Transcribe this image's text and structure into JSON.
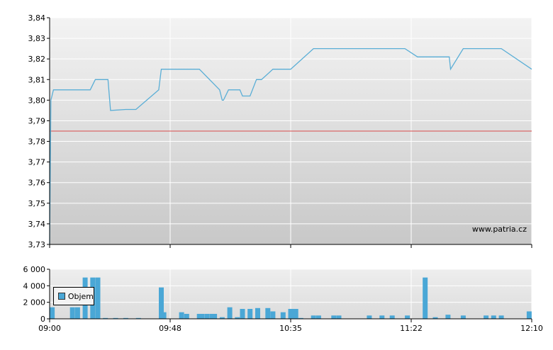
{
  "chart_data": [
    {
      "type": "line",
      "name": "price",
      "y_ticks": [
        "3,84",
        "3,83",
        "3,82",
        "3,81",
        "3,80",
        "3,79",
        "3,78",
        "3,77",
        "3,76",
        "3,75",
        "3,74",
        "3,73"
      ],
      "ylim": [
        3.73,
        3.84
      ],
      "reference_line": 3.785,
      "watermark": "www.patria.cz",
      "x_ticks": [
        "09:00",
        "09:48",
        "10:35",
        "11:22",
        "12:10"
      ],
      "xlim_minutes": [
        0,
        190
      ],
      "series": [
        {
          "points": [
            [
              0,
              3.73
            ],
            [
              0.5,
              3.8
            ],
            [
              1.5,
              3.805
            ],
            [
              16,
              3.805
            ],
            [
              18,
              3.81
            ],
            [
              23,
              3.81
            ],
            [
              24,
              3.795
            ],
            [
              30,
              3.7955
            ],
            [
              34,
              3.7955
            ],
            [
              43,
              3.805
            ],
            [
              44,
              3.815
            ],
            [
              59,
              3.815
            ],
            [
              67,
              3.805
            ],
            [
              68,
              3.8
            ],
            [
              68.5,
              3.8
            ],
            [
              70.5,
              3.805
            ],
            [
              75,
              3.805
            ],
            [
              76,
              3.802
            ],
            [
              79,
              3.802
            ],
            [
              81.5,
              3.81
            ],
            [
              83.5,
              3.81
            ],
            [
              88,
              3.815
            ],
            [
              95,
              3.815
            ],
            [
              104,
              3.825
            ],
            [
              140,
              3.825
            ],
            [
              145,
              3.821
            ],
            [
              157.5,
              3.821
            ],
            [
              158,
              3.815
            ],
            [
              163,
              3.825
            ],
            [
              178,
              3.825
            ],
            [
              190,
              3.815
            ]
          ],
          "color": "#5aaed6"
        }
      ],
      "colors": {
        "line": "#5aaed6",
        "reference": "#d94a4a",
        "plot_top": "#f3f3f3",
        "plot_bottom": "#c8c8c8"
      }
    },
    {
      "type": "bar",
      "name": "volume",
      "legend": "Objem",
      "y_ticks": [
        "6 000",
        "4 000",
        "2 000",
        "0"
      ],
      "ylim": [
        0,
        6000
      ],
      "x_ticks": [
        "09:00",
        "09:48",
        "10:35",
        "11:22",
        "12:10"
      ],
      "xlim_minutes": [
        0,
        190
      ],
      "bars": [
        [
          1,
          1400
        ],
        [
          9,
          1400
        ],
        [
          11,
          1400
        ],
        [
          14,
          5000
        ],
        [
          17,
          5000
        ],
        [
          19,
          5000
        ],
        [
          22,
          100
        ],
        [
          26,
          100
        ],
        [
          30,
          100
        ],
        [
          35,
          100
        ],
        [
          44,
          3800
        ],
        [
          45,
          800
        ],
        [
          52,
          800
        ],
        [
          54,
          600
        ],
        [
          59,
          600
        ],
        [
          60,
          600
        ],
        [
          62,
          600
        ],
        [
          64,
          600
        ],
        [
          65,
          600
        ],
        [
          68,
          200
        ],
        [
          71,
          1400
        ],
        [
          74,
          200
        ],
        [
          76,
          1200
        ],
        [
          79,
          1200
        ],
        [
          82,
          1300
        ],
        [
          86,
          1300
        ],
        [
          88,
          900
        ],
        [
          92,
          800
        ],
        [
          95,
          1200
        ],
        [
          96,
          1200
        ],
        [
          97,
          1200
        ],
        [
          99,
          100
        ],
        [
          104,
          400
        ],
        [
          106,
          400
        ],
        [
          112,
          400
        ],
        [
          114,
          400
        ],
        [
          126,
          400
        ],
        [
          131,
          400
        ],
        [
          135,
          400
        ],
        [
          141,
          400
        ],
        [
          148,
          5000
        ],
        [
          152,
          200
        ],
        [
          157,
          500
        ],
        [
          163,
          400
        ],
        [
          172,
          400
        ],
        [
          175,
          400
        ],
        [
          178,
          400
        ],
        [
          189,
          900
        ]
      ],
      "color": "#4aa7d6"
    }
  ]
}
